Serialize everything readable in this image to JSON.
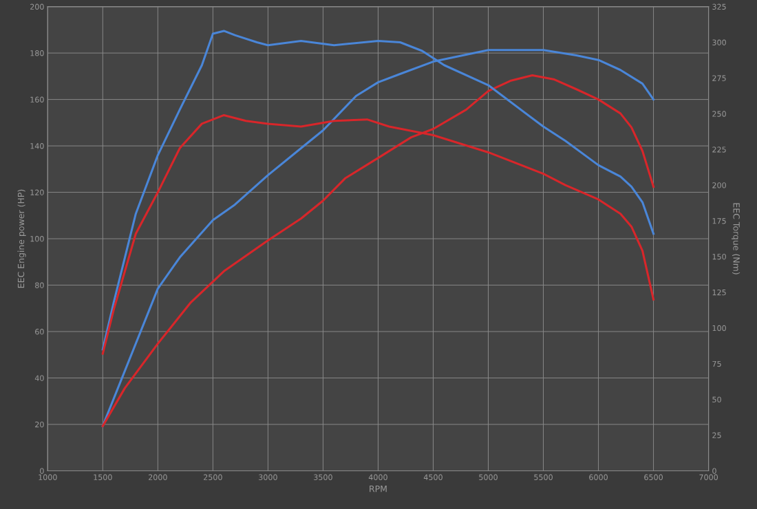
{
  "chart_data": {
    "type": "line",
    "xlabel": "RPM",
    "ylabel": "EEC Engine power (HP)",
    "y2label": "EEC Torque (Nm)",
    "xlim": [
      1000,
      7000
    ],
    "xticks": [
      1000,
      1500,
      2000,
      2500,
      3000,
      3500,
      4000,
      4500,
      5000,
      5500,
      6000,
      6500,
      7000
    ],
    "ylim": [
      0,
      200
    ],
    "yticks": [
      0,
      20,
      40,
      60,
      80,
      100,
      120,
      140,
      160,
      180,
      200
    ],
    "y2lim": [
      0,
      325
    ],
    "y2ticks": [
      0,
      25,
      50,
      75,
      100,
      125,
      150,
      175,
      200,
      225,
      250,
      275,
      300,
      325
    ],
    "grid": true,
    "marker": "none",
    "line_style": "solid",
    "series": [
      {
        "color": "#4a86d8",
        "axis": "y2",
        "x": [
          1500,
          1600,
          1800,
          2000,
          2200,
          2400,
          2500,
          2600,
          2700,
          2900,
          3000,
          3300,
          3600,
          4000,
          4200,
          4400,
          4600,
          5000,
          5500,
          5700,
          6000,
          6200,
          6300,
          6400,
          6500
        ],
        "values": [
          85,
          118,
          180,
          221,
          253,
          284,
          306,
          308,
          305,
          300,
          298,
          301,
          298,
          301,
          300,
          294,
          284,
          270,
          241,
          231,
          214,
          206,
          199,
          188,
          166
        ]
      },
      {
        "color": "#d8262a",
        "axis": "y2",
        "x": [
          1500,
          1600,
          1800,
          2000,
          2200,
          2400,
          2600,
          2800,
          3000,
          3300,
          3600,
          3900,
          4100,
          4500,
          5000,
          5500,
          5700,
          6000,
          6200,
          6300,
          6400,
          6500
        ],
        "values": [
          82,
          113,
          166,
          195,
          226,
          243,
          249,
          245,
          243,
          241,
          245,
          246,
          241,
          235,
          223,
          208,
          200,
          190,
          180,
          171,
          154,
          120
        ]
      },
      {
        "color": "#4a86d8",
        "axis": "y",
        "x": [
          1500,
          1700,
          2000,
          2200,
          2500,
          2700,
          3000,
          3300,
          3500,
          3800,
          4000,
          4200,
          4500,
          5000,
          5500,
          5800,
          6000,
          6200,
          6400,
          6500
        ],
        "values": [
          19.3,
          43,
          78.5,
          92,
          108,
          114.7,
          127.4,
          139,
          146.7,
          161.5,
          167.4,
          171,
          176.3,
          181.3,
          181.3,
          179,
          177,
          172.7,
          166.8,
          160
        ]
      },
      {
        "color": "#d8262a",
        "axis": "y",
        "x": [
          1500,
          1700,
          2000,
          2300,
          2600,
          3000,
          3300,
          3500,
          3700,
          4000,
          4300,
          4500,
          4800,
          5000,
          5200,
          5400,
          5600,
          5800,
          6000,
          6200,
          6300,
          6400,
          6500
        ],
        "values": [
          19.3,
          35.6,
          54.8,
          72.6,
          86,
          99.3,
          108.7,
          116.4,
          126,
          134.8,
          143.7,
          147.3,
          155.6,
          163.6,
          168,
          170.4,
          168.6,
          164.4,
          160,
          154,
          148,
          137.8,
          122.4
        ]
      }
    ]
  }
}
